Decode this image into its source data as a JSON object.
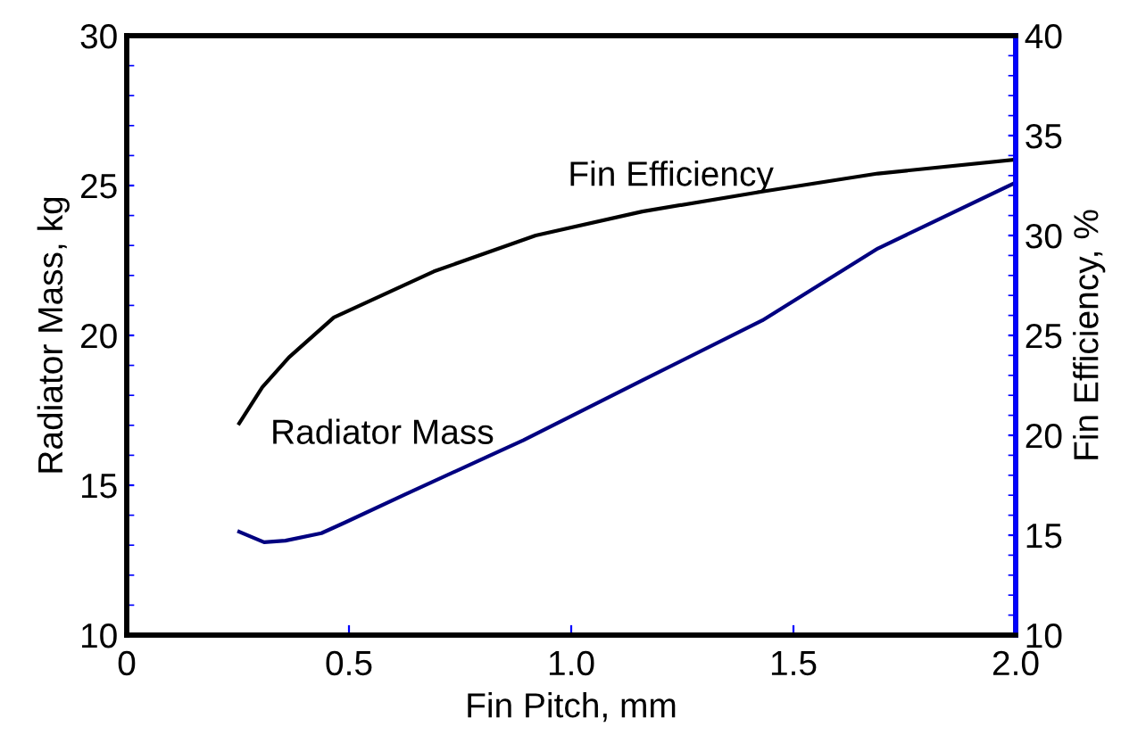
{
  "chart_data": {
    "type": "line",
    "xlabel": "Fin Pitch, mm",
    "ylabel": "Radiator Mass, kg",
    "y2label": "Fin Efficiency, %",
    "xlim": [
      0,
      2
    ],
    "xticks": [
      0,
      0.5,
      {
        "value": 1,
        "label": "1.0"
      },
      1.5,
      {
        "value": 2,
        "label": "2.0"
      }
    ],
    "ylim": [
      10,
      30
    ],
    "yticks": [
      10,
      15,
      20,
      25,
      30
    ],
    "y2lim": [
      10,
      40
    ],
    "y2ticks": [
      10,
      15,
      20,
      25,
      30,
      35,
      40
    ],
    "grid": false,
    "legend": false,
    "marker": "none",
    "line_style": "solid",
    "series": [
      {
        "name": "Fin Efficiency",
        "color": "#000000",
        "axis": "y2",
        "x": [
          0.253,
          0.305,
          0.365,
          0.466,
          0.691,
          0.92,
          1.16,
          1.43,
          1.69,
          2.0
        ],
        "values": [
          20.6,
          22.4,
          23.9,
          25.9,
          28.2,
          30.0,
          31.2,
          32.2,
          33.1,
          33.8
        ]
      },
      {
        "name": "Radiator Mass",
        "color": "#000080",
        "x": [
          0.253,
          0.309,
          0.357,
          0.438,
          0.49,
          0.627,
          0.892,
          1.16,
          1.43,
          1.69,
          2.0
        ],
        "values": [
          13.45,
          13.1,
          13.15,
          13.4,
          13.75,
          14.7,
          16.5,
          18.5,
          20.5,
          22.9,
          25.1
        ]
      }
    ]
  }
}
